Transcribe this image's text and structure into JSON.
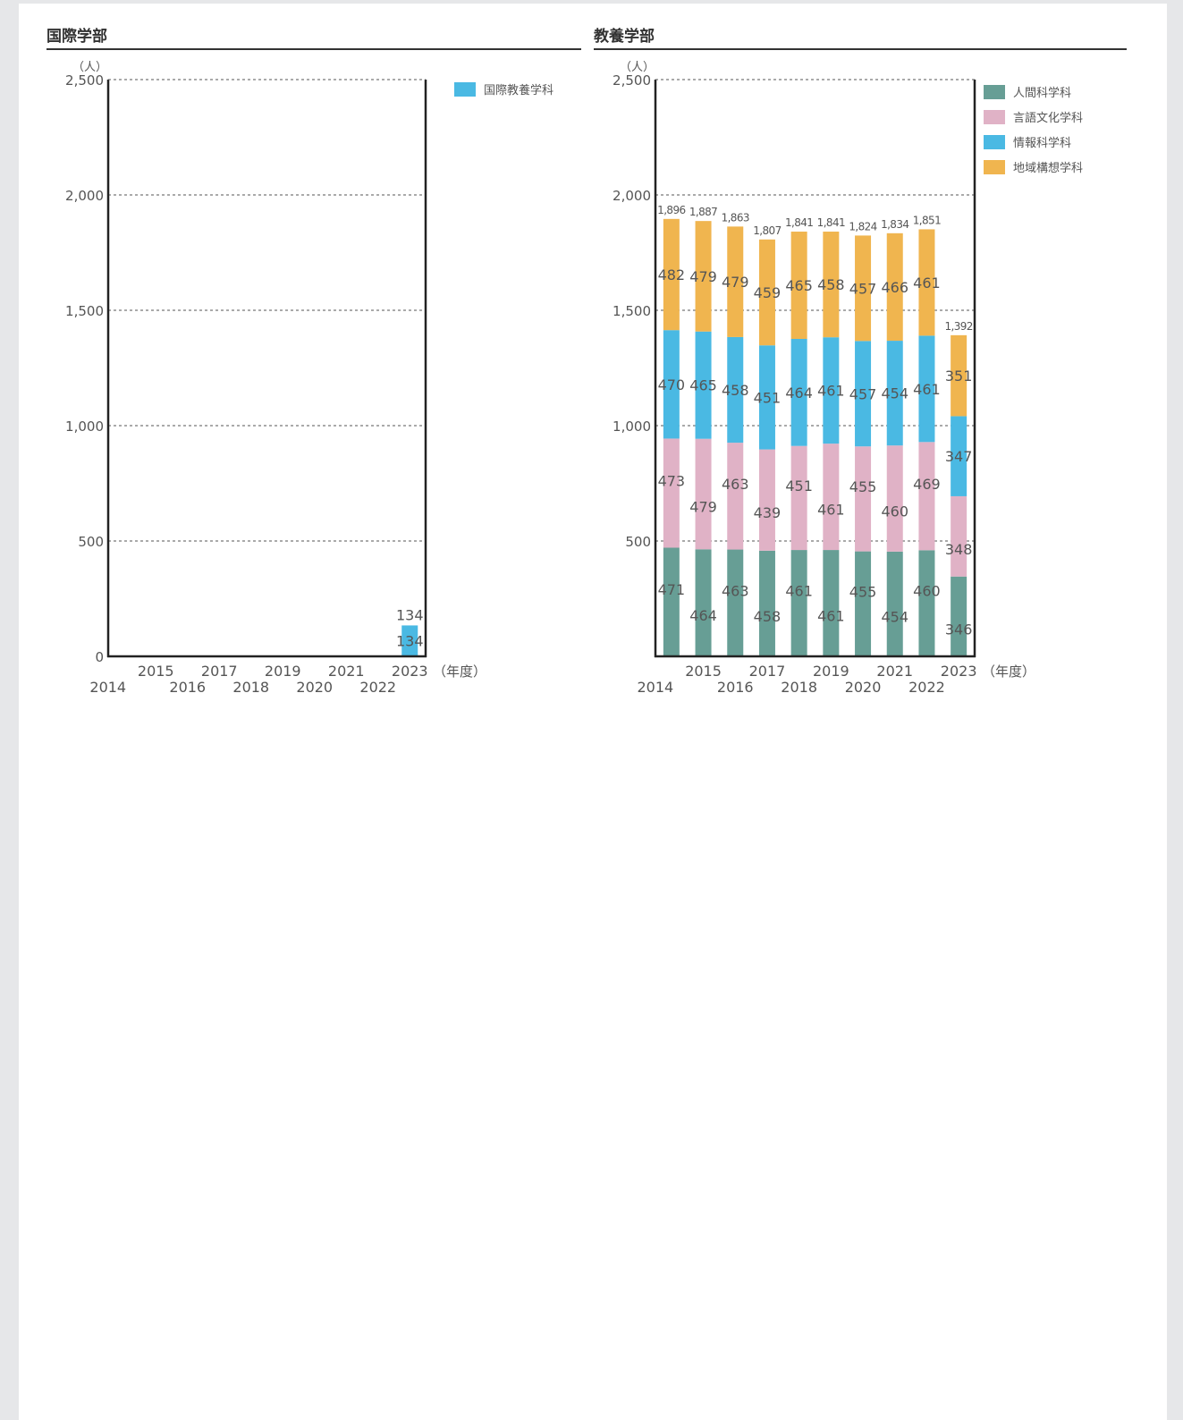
{
  "colors": {
    "international": "#4ab9e3",
    "human_science": "#679e95",
    "language_culture": "#e0b2c6",
    "informatics": "#4ab9e3",
    "regional": "#f0b54f",
    "axis": "#222222",
    "text": "#555555"
  },
  "chart_data": [
    {
      "type": "bar",
      "title": "国際学部",
      "unit_label": "（人）",
      "xlabel": "（年度）",
      "categories": [
        "2014",
        "2015",
        "2016",
        "2017",
        "2018",
        "2019",
        "2020",
        "2021",
        "2022",
        "2023"
      ],
      "yticks": [
        "0",
        "500",
        "1,000",
        "1,500",
        "2,000",
        "2,500"
      ],
      "ytick_values": [
        0,
        500,
        1000,
        1500,
        2000,
        2500
      ],
      "ylim": [
        0,
        2500
      ],
      "grid": true,
      "legend_position": "top-right",
      "series": [
        {
          "name": "国際教養学科",
          "values": [
            null,
            null,
            null,
            null,
            null,
            null,
            null,
            null,
            null,
            134
          ]
        }
      ],
      "totals": [
        null,
        null,
        null,
        null,
        null,
        null,
        null,
        null,
        null,
        134
      ]
    },
    {
      "type": "bar",
      "stacked": true,
      "title": "教養学部",
      "unit_label": "（人）",
      "xlabel": "（年度）",
      "categories": [
        "2014",
        "2015",
        "2016",
        "2017",
        "2018",
        "2019",
        "2020",
        "2021",
        "2022",
        "2023"
      ],
      "yticks": [
        "",
        "500",
        "1,000",
        "1,500",
        "2,000",
        "2,500"
      ],
      "ytick_values": [
        0,
        500,
        1000,
        1500,
        2000,
        2500
      ],
      "ylim": [
        0,
        2500
      ],
      "grid": true,
      "legend_position": "top-right",
      "series": [
        {
          "name": "人間科学科",
          "values": [
            471,
            464,
            463,
            458,
            461,
            461,
            455,
            454,
            460,
            346
          ]
        },
        {
          "name": "言語文化学科",
          "values": [
            473,
            479,
            463,
            439,
            451,
            461,
            455,
            460,
            469,
            348
          ]
        },
        {
          "name": "情報科学科",
          "values": [
            470,
            465,
            458,
            451,
            464,
            461,
            457,
            454,
            461,
            347
          ]
        },
        {
          "name": "地域構想学科",
          "values": [
            482,
            479,
            479,
            459,
            465,
            458,
            457,
            466,
            461,
            351
          ]
        }
      ],
      "totals": [
        1896,
        1887,
        1863,
        1807,
        1841,
        1841,
        1824,
        1834,
        1851,
        1392
      ],
      "total_labels": [
        "1,896",
        "1,887",
        "1,863",
        "1,807",
        "1,841",
        "1,841",
        "1,824",
        "1,834",
        "1,851",
        "1,392"
      ]
    }
  ]
}
